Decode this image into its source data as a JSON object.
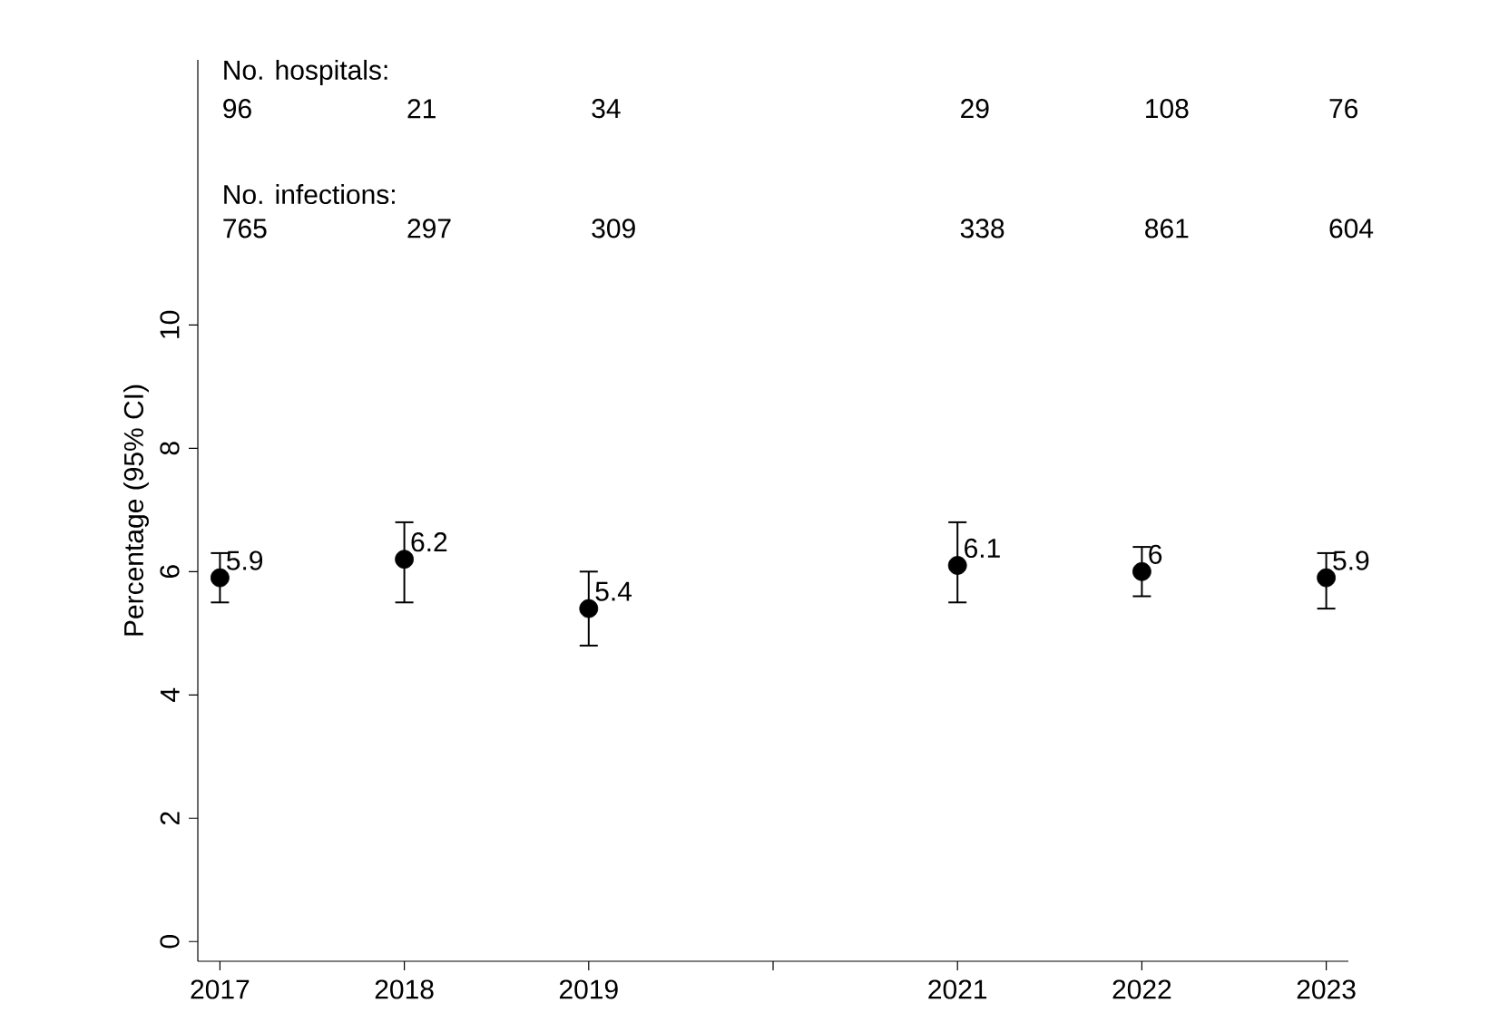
{
  "chart_data": {
    "type": "scatter",
    "ylabel": "Percentage (95% CI)",
    "x": [
      2017,
      2018,
      2019,
      2021,
      2022,
      2023
    ],
    "values": [
      5.9,
      6.2,
      5.4,
      6.1,
      6,
      5.9
    ],
    "color": "#000000",
    "errors": [
      [
        5.5,
        6.3
      ],
      [
        5.5,
        6.8
      ],
      [
        4.8,
        6.0
      ],
      [
        5.5,
        6.8
      ],
      [
        5.6,
        6.4
      ],
      [
        5.4,
        6.3
      ]
    ],
    "data_labels": true,
    "xlim": [
      2016.88,
      2023.12
    ],
    "xticks": [
      2017,
      2018,
      2019,
      {
        "value": 2020,
        "label": null
      },
      2021,
      2022,
      2023
    ],
    "ylim": [
      -0.32,
      14.3
    ],
    "yticks": [
      0,
      2,
      4,
      6,
      8,
      10
    ],
    "grid": false,
    "annotations": [
      "No. hospitals:",
      "96",
      "21",
      "34",
      "29",
      "108",
      "76",
      "No. infections:",
      "765",
      "297",
      "309",
      "338",
      "861",
      "604"
    ]
  }
}
